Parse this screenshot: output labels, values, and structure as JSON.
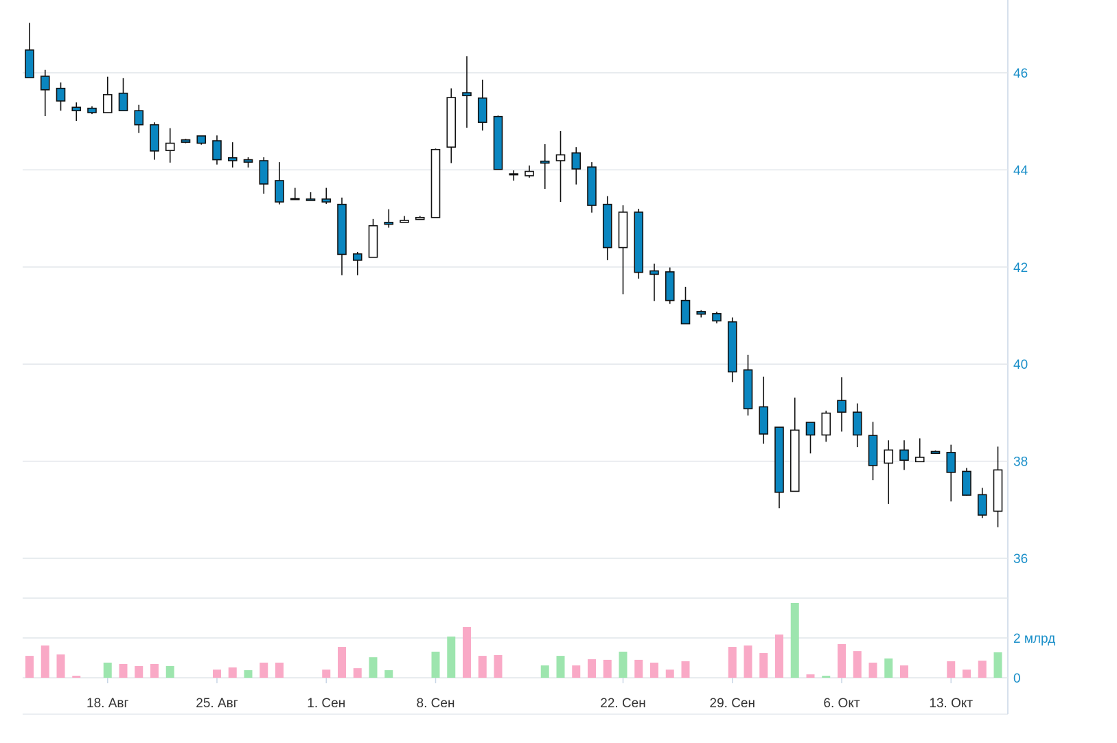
{
  "chart_data": {
    "type": "candlestick",
    "categories": [
      null,
      null,
      null,
      null,
      null,
      "18. Авг",
      null,
      null,
      null,
      null,
      null,
      null,
      "25. Авг",
      null,
      null,
      null,
      null,
      null,
      null,
      "1. Сен",
      null,
      null,
      null,
      null,
      null,
      null,
      "8. Сен",
      null,
      null,
      null,
      null,
      null,
      null,
      null,
      null,
      null,
      null,
      null,
      "22. Сен",
      null,
      null,
      null,
      null,
      null,
      null,
      "29. Сен",
      null,
      null,
      null,
      null,
      null,
      null,
      "6. Окт",
      null,
      null,
      null,
      null,
      null,
      null,
      "13. Окт",
      null,
      null,
      null
    ],
    "open": [
      46.47,
      45.93,
      45.68,
      45.29,
      45.27,
      45.18,
      45.58,
      45.22,
      44.93,
      44.4,
      44.62,
      44.7,
      44.6,
      44.25,
      44.21,
      44.19,
      43.78,
      43.41,
      43.4,
      43.4,
      43.29,
      42.27,
      42.2,
      42.92,
      42.92,
      42.98,
      43.02,
      44.47,
      45.59,
      45.48,
      45.1,
      43.92,
      43.88,
      44.18,
      44.19,
      44.35,
      44.06,
      43.29,
      42.4,
      43.13,
      41.92,
      41.9,
      41.31,
      41.08,
      41.04,
      40.87,
      39.88,
      39.12,
      38.7,
      37.38,
      38.8,
      38.54,
      39.25,
      39.01,
      38.53,
      37.96,
      38.23,
      37.99,
      38.2,
      38.18,
      37.79,
      37.31,
      36.97
    ],
    "high": [
      47.03,
      46.06,
      45.8,
      45.39,
      45.31,
      45.92,
      45.89,
      45.34,
      44.98,
      44.86,
      44.64,
      44.7,
      44.71,
      44.57,
      44.26,
      44.26,
      44.16,
      43.63,
      43.54,
      43.63,
      43.43,
      42.31,
      42.99,
      43.19,
      43.05,
      43.05,
      44.44,
      45.68,
      46.34,
      45.86,
      45.12,
      43.99,
      44.09,
      44.53,
      44.8,
      44.47,
      44.16,
      43.46,
      43.27,
      43.2,
      42.07,
      41.99,
      41.59,
      41.11,
      41.08,
      40.96,
      40.19,
      39.74,
      38.7,
      39.31,
      38.8,
      39.04,
      39.73,
      39.19,
      38.81,
      38.43,
      38.43,
      38.47,
      38.22,
      38.34,
      37.86,
      37.45,
      38.3
    ],
    "low": [
      45.9,
      45.11,
      45.22,
      45.01,
      45.15,
      45.18,
      45.22,
      44.76,
      44.21,
      44.15,
      44.55,
      44.52,
      44.11,
      44.05,
      44.05,
      43.51,
      43.29,
      43.39,
      43.37,
      43.3,
      41.83,
      41.83,
      42.2,
      42.81,
      42.91,
      42.98,
      43.02,
      44.14,
      44.87,
      44.81,
      44.01,
      43.78,
      43.84,
      43.61,
      43.34,
      43.7,
      43.12,
      42.14,
      41.44,
      41.76,
      41.3,
      41.24,
      40.83,
      40.96,
      40.84,
      39.63,
      38.94,
      38.36,
      37.03,
      37.38,
      38.16,
      38.4,
      38.61,
      38.29,
      37.61,
      37.12,
      37.82,
      37.99,
      38.15,
      37.17,
      37.29,
      36.83,
      36.64
    ],
    "close": [
      45.9,
      45.65,
      45.42,
      45.22,
      45.18,
      45.55,
      45.22,
      44.93,
      44.39,
      44.55,
      44.57,
      44.55,
      44.21,
      44.19,
      44.16,
      43.71,
      43.34,
      43.39,
      43.37,
      43.34,
      42.26,
      42.14,
      42.85,
      42.88,
      42.96,
      43.02,
      44.42,
      45.49,
      45.53,
      44.98,
      44.01,
      43.9,
      43.97,
      44.14,
      44.31,
      44.02,
      43.27,
      42.4,
      43.13,
      41.89,
      41.85,
      41.31,
      40.83,
      41.03,
      40.89,
      39.84,
      39.08,
      38.56,
      37.36,
      38.64,
      38.54,
      38.99,
      39.01,
      38.54,
      37.91,
      38.23,
      38.02,
      38.08,
      38.16,
      37.77,
      37.3,
      36.89,
      37.82
    ],
    "down_color": "#0a86c0",
    "up_color": "#ffffff",
    "ylim": [
      36,
      47.5
    ],
    "yticks": [
      36,
      38,
      40,
      42,
      44,
      46
    ],
    "grid": true,
    "volume": {
      "values": [
        1.1,
        1.62,
        1.17,
        0.1,
        null,
        0.76,
        0.69,
        0.59,
        0.69,
        0.59,
        null,
        null,
        0.41,
        0.52,
        0.38,
        0.76,
        0.76,
        null,
        null,
        0.41,
        1.55,
        0.48,
        1.03,
        0.38,
        null,
        null,
        1.31,
        2.07,
        2.55,
        1.1,
        1.14,
        null,
        null,
        0.62,
        1.1,
        0.62,
        0.93,
        0.9,
        1.31,
        0.9,
        0.76,
        0.41,
        0.83,
        null,
        null,
        1.55,
        1.62,
        1.24,
        2.17,
        3.76,
        0.17,
        0.1,
        1.69,
        1.34,
        0.76,
        0.97,
        0.62,
        null,
        null,
        0.83,
        0.41,
        0.86,
        1.28
      ],
      "colors": [
        "#f9a9c6",
        "#f9a9c6",
        "#f9a9c6",
        "#f9a9c6",
        null,
        "#9de5ae",
        "#f9a9c6",
        "#f9a9c6",
        "#f9a9c6",
        "#9de5ae",
        null,
        null,
        "#f9a9c6",
        "#f9a9c6",
        "#9de5ae",
        "#f9a9c6",
        "#f9a9c6",
        null,
        null,
        "#f9a9c6",
        "#f9a9c6",
        "#f9a9c6",
        "#9de5ae",
        "#9de5ae",
        null,
        null,
        "#9de5ae",
        "#9de5ae",
        "#f9a9c6",
        "#f9a9c6",
        "#f9a9c6",
        null,
        null,
        "#9de5ae",
        "#9de5ae",
        "#f9a9c6",
        "#f9a9c6",
        "#f9a9c6",
        "#9de5ae",
        "#f9a9c6",
        "#f9a9c6",
        "#f9a9c6",
        "#f9a9c6",
        null,
        null,
        "#f9a9c6",
        "#f9a9c6",
        "#f9a9c6",
        "#f9a9c6",
        "#9de5ae",
        "#f9a9c6",
        "#9de5ae",
        "#f9a9c6",
        "#f9a9c6",
        "#f9a9c6",
        "#9de5ae",
        "#f9a9c6",
        null,
        null,
        "#f9a9c6",
        "#f9a9c6",
        "#f9a9c6",
        "#9de5ae"
      ],
      "ylim": [
        0,
        4
      ],
      "yticks": [
        0,
        {
          "value": 2,
          "label": "2 млрд"
        }
      ]
    }
  }
}
